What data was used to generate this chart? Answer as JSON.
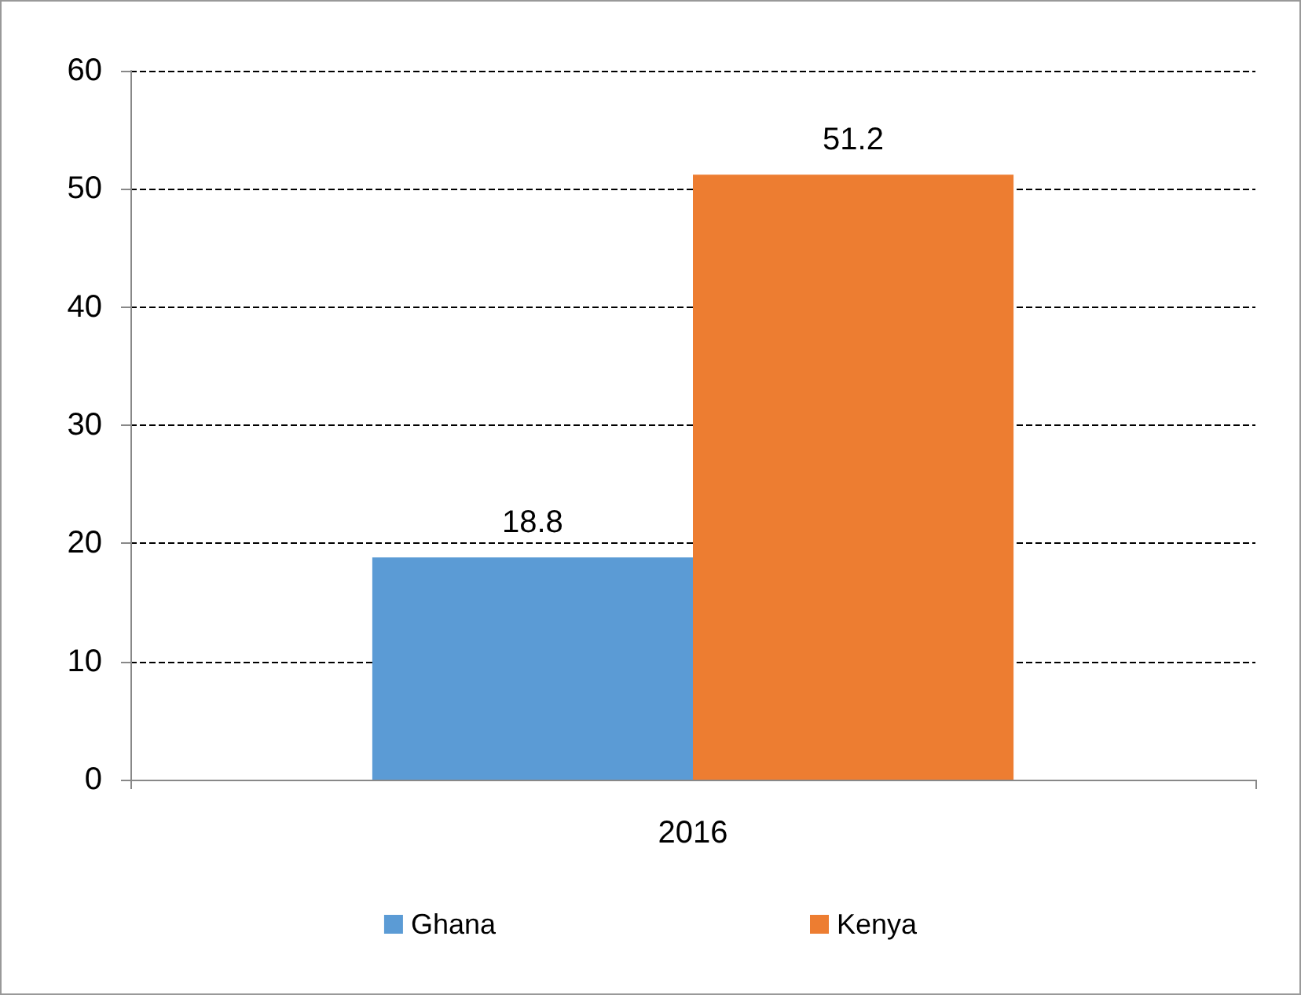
{
  "chart_data": {
    "type": "bar",
    "categories": [
      "2016"
    ],
    "series": [
      {
        "name": "Ghana",
        "color": "#5b9bd5",
        "values": [
          18.8
        ]
      },
      {
        "name": "Kenya",
        "color": "#ed7d31",
        "values": [
          51.2
        ]
      }
    ],
    "ylim": [
      0,
      60
    ],
    "yticks": [
      0,
      10,
      20,
      30,
      40,
      50,
      60
    ],
    "grid": "y",
    "legend": "bottom",
    "data_labels": true
  }
}
